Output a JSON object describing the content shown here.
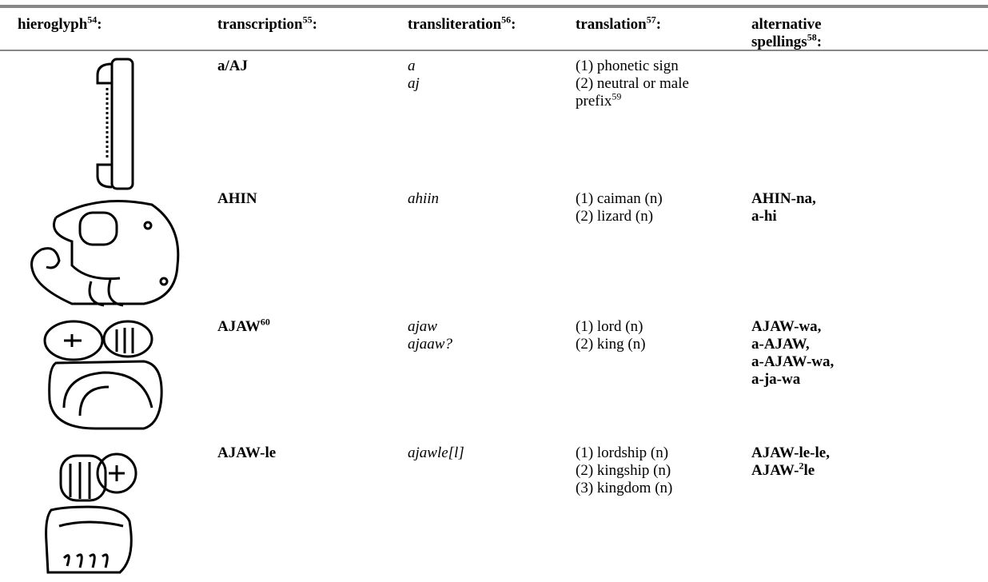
{
  "table": {
    "headers": [
      {
        "text": "hieroglyph",
        "sup": "54",
        "after": ":"
      },
      {
        "text": "transcription",
        "sup": "55",
        "after": ":"
      },
      {
        "text": "transliteration",
        "sup": "56",
        "after": ":"
      },
      {
        "text": "translation",
        "sup": "57",
        "after": ":"
      },
      {
        "text": "alternative spellings",
        "sup": "58",
        "after": ":"
      }
    ],
    "rows": [
      {
        "transcription": [
          "a/AJ"
        ],
        "transliteration": [
          "a",
          "aj"
        ],
        "translation": [
          "(1) phonetic sign",
          {
            "text": "(2) neutral or male prefix",
            "sup": "59"
          }
        ],
        "alternatives": []
      },
      {
        "transcription": [
          "AHIN"
        ],
        "transliteration": [
          "ahiin"
        ],
        "translation": [
          "(1) caiman (n)",
          "(2) lizard (n)"
        ],
        "alternatives": [
          "AHIN-na,",
          "a-hi"
        ]
      },
      {
        "transcription": [
          {
            "text": "AJAW",
            "sup": "60"
          }
        ],
        "transliteration": [
          "ajaw",
          "ajaaw?"
        ],
        "translation": [
          "(1) lord (n)",
          "(2) king (n)"
        ],
        "alternatives": [
          "AJAW-wa,",
          "a-AJAW,",
          "a-AJAW-wa,",
          "a-ja-wa"
        ]
      },
      {
        "transcription": [
          "AJAW-le"
        ],
        "transliteration": [
          "ajawle[l]"
        ],
        "translation": [
          "(1) lordship (n)",
          "(2) kingship (n)",
          "(3) kingdom (n)"
        ],
        "alternatives": [
          "AJAW-le-le,",
          {
            "text": "AJAW-",
            "sup": "2",
            "after": "le"
          }
        ]
      }
    ]
  }
}
